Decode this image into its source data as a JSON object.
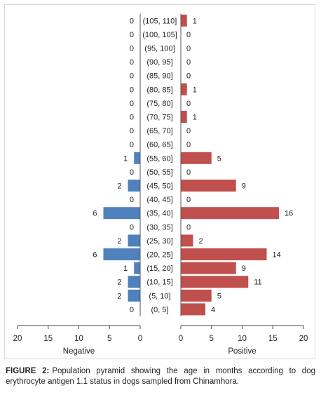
{
  "chart_data": {
    "type": "bar",
    "subtype": "population-pyramid",
    "categories": [
      "(0, 5]",
      "(5, 10]",
      "(10, 15]",
      "(15, 20]",
      "(20, 25]",
      "(25, 30]",
      "(30, 35]",
      "(35, 40]",
      "(40, 45]",
      "(45, 50]",
      "(50, 55]",
      "(55, 60]",
      "(60, 65]",
      "(65, 70]",
      "(70, 75]",
      "(75, 80]",
      "(80, 85]",
      "(85, 90]",
      "(90, 95]",
      "(95, 100]",
      "(100, 105]",
      "(105, 110]"
    ],
    "series": [
      {
        "name": "Negative",
        "color": "#4f81bd",
        "values": [
          0,
          2,
          2,
          1,
          6,
          2,
          0,
          6,
          0,
          2,
          0,
          1,
          0,
          0,
          0,
          0,
          0,
          0,
          0,
          0,
          0,
          0
        ]
      },
      {
        "name": "Positive",
        "color": "#c0504d",
        "values": [
          4,
          5,
          11,
          9,
          14,
          2,
          0,
          16,
          0,
          9,
          0,
          5,
          0,
          0,
          1,
          0,
          1,
          0,
          0,
          0,
          0,
          1
        ]
      }
    ],
    "left_ticks": [
      "20",
      "15",
      "10",
      "5",
      "0"
    ],
    "right_ticks": [
      "0",
      "5",
      "10",
      "15",
      "20"
    ],
    "xlim": [
      0,
      20
    ],
    "grid": false,
    "legend": "none"
  },
  "caption": {
    "label": "FIGURE 2:",
    "text": "Population pyramid showing the age in months according to dog erythrocyte antigen 1.1 status in dogs sampled from Chinamhora."
  }
}
